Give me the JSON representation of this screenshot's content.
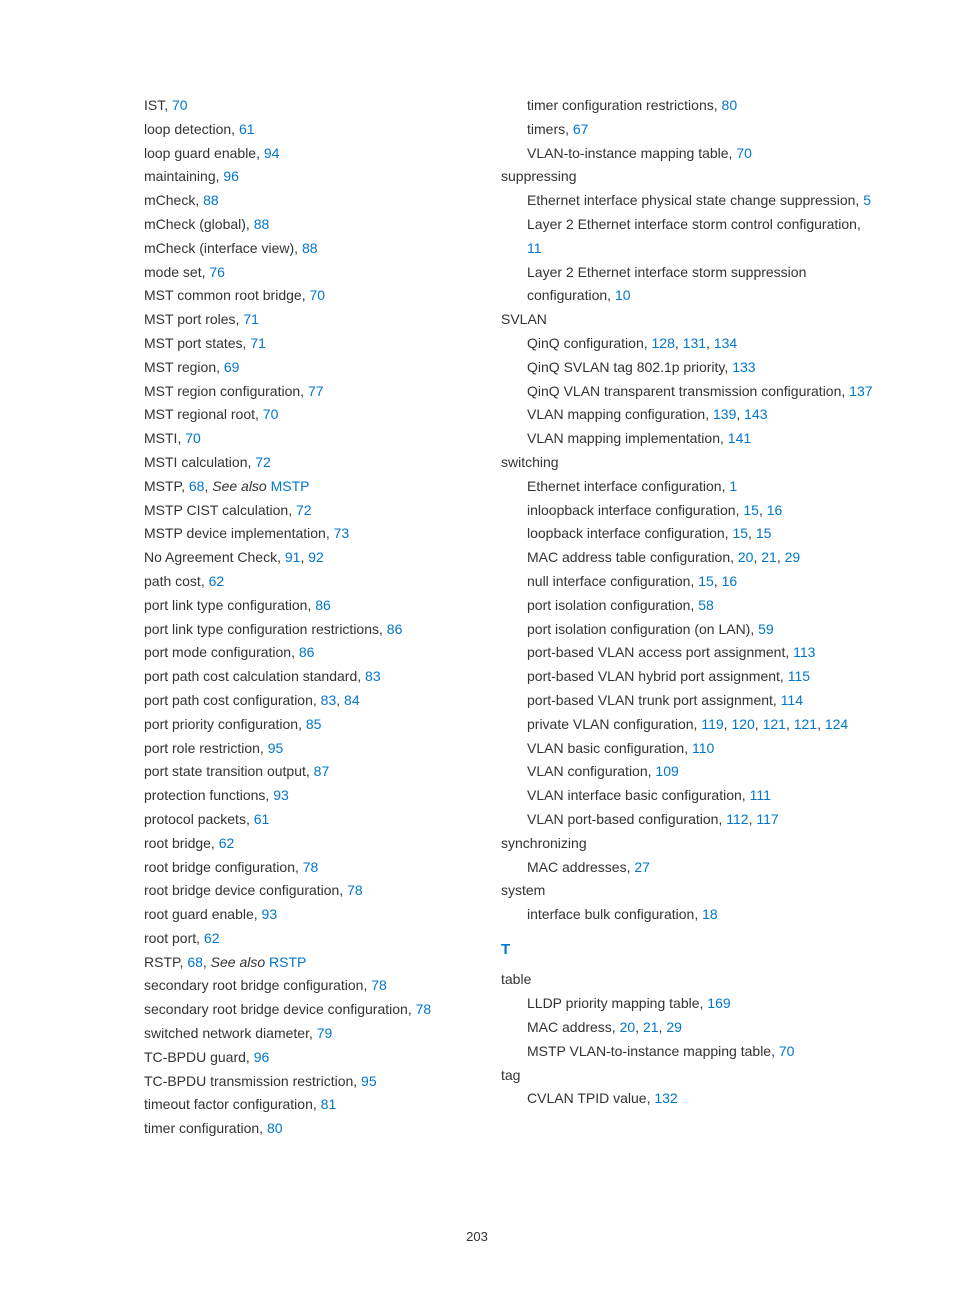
{
  "page_number": "203",
  "link_color": "#0077cc",
  "text_color": "#333333",
  "font_family": "Arial, Helvetica, sans-serif",
  "font_size_pt": 10,
  "left_column": [
    {
      "indent": 1,
      "parts": [
        {
          "t": "IST, "
        },
        {
          "t": "70",
          "l": true
        }
      ]
    },
    {
      "indent": 1,
      "parts": [
        {
          "t": "loop detection, "
        },
        {
          "t": "61",
          "l": true
        }
      ]
    },
    {
      "indent": 1,
      "parts": [
        {
          "t": "loop guard enable, "
        },
        {
          "t": "94",
          "l": true
        }
      ]
    },
    {
      "indent": 1,
      "parts": [
        {
          "t": "maintaining, "
        },
        {
          "t": "96",
          "l": true
        }
      ]
    },
    {
      "indent": 1,
      "parts": [
        {
          "t": "mCheck, "
        },
        {
          "t": "88",
          "l": true
        }
      ]
    },
    {
      "indent": 1,
      "parts": [
        {
          "t": "mCheck (global), "
        },
        {
          "t": "88",
          "l": true
        }
      ]
    },
    {
      "indent": 1,
      "parts": [
        {
          "t": "mCheck (interface view), "
        },
        {
          "t": "88",
          "l": true
        }
      ]
    },
    {
      "indent": 1,
      "parts": [
        {
          "t": "mode set, "
        },
        {
          "t": "76",
          "l": true
        }
      ]
    },
    {
      "indent": 1,
      "parts": [
        {
          "t": "MST common root bridge, "
        },
        {
          "t": "70",
          "l": true
        }
      ]
    },
    {
      "indent": 1,
      "parts": [
        {
          "t": "MST port roles, "
        },
        {
          "t": "71",
          "l": true
        }
      ]
    },
    {
      "indent": 1,
      "parts": [
        {
          "t": "MST port states, "
        },
        {
          "t": "71",
          "l": true
        }
      ]
    },
    {
      "indent": 1,
      "parts": [
        {
          "t": "MST region, "
        },
        {
          "t": "69",
          "l": true
        }
      ]
    },
    {
      "indent": 1,
      "parts": [
        {
          "t": "MST region configuration, "
        },
        {
          "t": "77",
          "l": true
        }
      ]
    },
    {
      "indent": 1,
      "parts": [
        {
          "t": "MST regional root, "
        },
        {
          "t": "70",
          "l": true
        }
      ]
    },
    {
      "indent": 1,
      "parts": [
        {
          "t": "MSTI, "
        },
        {
          "t": "70",
          "l": true
        }
      ]
    },
    {
      "indent": 1,
      "parts": [
        {
          "t": "MSTI calculation, "
        },
        {
          "t": "72",
          "l": true
        }
      ]
    },
    {
      "indent": 1,
      "parts": [
        {
          "t": "MSTP, "
        },
        {
          "t": "68",
          "l": true
        },
        {
          "t": ", "
        },
        {
          "t": "See also",
          "i": true
        },
        {
          "t": " "
        },
        {
          "t": "MSTP",
          "l": true
        }
      ]
    },
    {
      "indent": 1,
      "parts": [
        {
          "t": "MSTP CIST calculation, "
        },
        {
          "t": "72",
          "l": true
        }
      ]
    },
    {
      "indent": 1,
      "parts": [
        {
          "t": "MSTP device implementation, "
        },
        {
          "t": "73",
          "l": true
        }
      ]
    },
    {
      "indent": 1,
      "parts": [
        {
          "t": "No Agreement Check, "
        },
        {
          "t": "91",
          "l": true
        },
        {
          "t": ", "
        },
        {
          "t": "92",
          "l": true
        }
      ]
    },
    {
      "indent": 1,
      "parts": [
        {
          "t": "path cost, "
        },
        {
          "t": "62",
          "l": true
        }
      ]
    },
    {
      "indent": 1,
      "parts": [
        {
          "t": "port link type configuration, "
        },
        {
          "t": "86",
          "l": true
        }
      ]
    },
    {
      "indent": 1,
      "parts": [
        {
          "t": "port link type configuration restrictions, "
        },
        {
          "t": "86",
          "l": true
        }
      ]
    },
    {
      "indent": 1,
      "parts": [
        {
          "t": "port mode configuration, "
        },
        {
          "t": "86",
          "l": true
        }
      ]
    },
    {
      "indent": 1,
      "parts": [
        {
          "t": "port path cost calculation standard, "
        },
        {
          "t": "83",
          "l": true
        }
      ]
    },
    {
      "indent": 1,
      "parts": [
        {
          "t": "port path cost configuration, "
        },
        {
          "t": "83",
          "l": true
        },
        {
          "t": ", "
        },
        {
          "t": "84",
          "l": true
        }
      ]
    },
    {
      "indent": 1,
      "parts": [
        {
          "t": "port priority configuration, "
        },
        {
          "t": "85",
          "l": true
        }
      ]
    },
    {
      "indent": 1,
      "parts": [
        {
          "t": "port role restriction, "
        },
        {
          "t": "95",
          "l": true
        }
      ]
    },
    {
      "indent": 1,
      "parts": [
        {
          "t": "port state transition output, "
        },
        {
          "t": "87",
          "l": true
        }
      ]
    },
    {
      "indent": 1,
      "parts": [
        {
          "t": "protection functions, "
        },
        {
          "t": "93",
          "l": true
        }
      ]
    },
    {
      "indent": 1,
      "parts": [
        {
          "t": "protocol packets, "
        },
        {
          "t": "61",
          "l": true
        }
      ]
    },
    {
      "indent": 1,
      "parts": [
        {
          "t": "root bridge, "
        },
        {
          "t": "62",
          "l": true
        }
      ]
    },
    {
      "indent": 1,
      "parts": [
        {
          "t": "root bridge configuration, "
        },
        {
          "t": "78",
          "l": true
        }
      ]
    },
    {
      "indent": 1,
      "parts": [
        {
          "t": "root bridge device configuration, "
        },
        {
          "t": "78",
          "l": true
        }
      ]
    },
    {
      "indent": 1,
      "parts": [
        {
          "t": "root guard enable, "
        },
        {
          "t": "93",
          "l": true
        }
      ]
    },
    {
      "indent": 1,
      "parts": [
        {
          "t": "root port, "
        },
        {
          "t": "62",
          "l": true
        }
      ]
    },
    {
      "indent": 1,
      "parts": [
        {
          "t": "RSTP, "
        },
        {
          "t": "68",
          "l": true
        },
        {
          "t": ", "
        },
        {
          "t": "See also",
          "i": true
        },
        {
          "t": " "
        },
        {
          "t": "RSTP",
          "l": true
        }
      ]
    },
    {
      "indent": 1,
      "parts": [
        {
          "t": "secondary root bridge configuration, "
        },
        {
          "t": "78",
          "l": true
        }
      ]
    },
    {
      "indent": 1,
      "parts": [
        {
          "t": "secondary root bridge device configuration, "
        },
        {
          "t": "78",
          "l": true
        }
      ]
    },
    {
      "indent": 1,
      "parts": [
        {
          "t": "switched network diameter, "
        },
        {
          "t": "79",
          "l": true
        }
      ]
    },
    {
      "indent": 1,
      "parts": [
        {
          "t": "TC-BPDU guard, "
        },
        {
          "t": "96",
          "l": true
        }
      ]
    },
    {
      "indent": 1,
      "parts": [
        {
          "t": "TC-BPDU transmission restriction, "
        },
        {
          "t": "95",
          "l": true
        }
      ]
    },
    {
      "indent": 1,
      "parts": [
        {
          "t": "timeout factor configuration, "
        },
        {
          "t": "81",
          "l": true
        }
      ]
    },
    {
      "indent": 1,
      "parts": [
        {
          "t": "timer configuration, "
        },
        {
          "t": "80",
          "l": true
        }
      ]
    }
  ],
  "right_column": [
    {
      "indent": 1,
      "parts": [
        {
          "t": "timer configuration restrictions, "
        },
        {
          "t": "80",
          "l": true
        }
      ]
    },
    {
      "indent": 1,
      "parts": [
        {
          "t": "timers, "
        },
        {
          "t": "67",
          "l": true
        }
      ]
    },
    {
      "indent": 1,
      "parts": [
        {
          "t": "VLAN-to-instance mapping table, "
        },
        {
          "t": "70",
          "l": true
        }
      ]
    },
    {
      "indent": 0,
      "parts": [
        {
          "t": "suppressing"
        }
      ]
    },
    {
      "indent": 1,
      "parts": [
        {
          "t": "Ethernet interface physical state change suppression, "
        },
        {
          "t": "5",
          "l": true
        }
      ]
    },
    {
      "indent": 1,
      "parts": [
        {
          "t": "Layer 2 Ethernet interface storm control configuration, "
        },
        {
          "t": "11",
          "l": true
        }
      ]
    },
    {
      "indent": 1,
      "parts": [
        {
          "t": "Layer 2 Ethernet interface storm suppression configuration, "
        },
        {
          "t": "10",
          "l": true
        }
      ]
    },
    {
      "indent": 0,
      "parts": [
        {
          "t": "SVLAN"
        }
      ]
    },
    {
      "indent": 1,
      "parts": [
        {
          "t": "QinQ configuration, "
        },
        {
          "t": "128",
          "l": true
        },
        {
          "t": ", "
        },
        {
          "t": "131",
          "l": true
        },
        {
          "t": ", "
        },
        {
          "t": "134",
          "l": true
        }
      ]
    },
    {
      "indent": 1,
      "parts": [
        {
          "t": "QinQ SVLAN tag 802.1p priority, "
        },
        {
          "t": "133",
          "l": true
        }
      ]
    },
    {
      "indent": 1,
      "parts": [
        {
          "t": "QinQ VLAN transparent transmission configuration, "
        },
        {
          "t": "137",
          "l": true
        }
      ]
    },
    {
      "indent": 1,
      "parts": [
        {
          "t": "VLAN mapping configuration, "
        },
        {
          "t": "139",
          "l": true
        },
        {
          "t": ", "
        },
        {
          "t": "143",
          "l": true
        }
      ]
    },
    {
      "indent": 1,
      "parts": [
        {
          "t": "VLAN mapping implementation, "
        },
        {
          "t": "141",
          "l": true
        }
      ]
    },
    {
      "indent": 0,
      "parts": [
        {
          "t": "switching"
        }
      ]
    },
    {
      "indent": 1,
      "parts": [
        {
          "t": "Ethernet interface configuration, "
        },
        {
          "t": "1",
          "l": true
        }
      ]
    },
    {
      "indent": 1,
      "parts": [
        {
          "t": "inloopback interface configuration, "
        },
        {
          "t": "15",
          "l": true
        },
        {
          "t": ", "
        },
        {
          "t": "16",
          "l": true
        }
      ]
    },
    {
      "indent": 1,
      "parts": [
        {
          "t": "loopback interface configuration, "
        },
        {
          "t": "15",
          "l": true
        },
        {
          "t": ", "
        },
        {
          "t": "15",
          "l": true
        }
      ]
    },
    {
      "indent": 1,
      "parts": [
        {
          "t": "MAC address table configuration, "
        },
        {
          "t": "20",
          "l": true
        },
        {
          "t": ", "
        },
        {
          "t": "21",
          "l": true
        },
        {
          "t": ", "
        },
        {
          "t": "29",
          "l": true
        }
      ]
    },
    {
      "indent": 1,
      "parts": [
        {
          "t": "null interface configuration, "
        },
        {
          "t": "15",
          "l": true
        },
        {
          "t": ", "
        },
        {
          "t": "16",
          "l": true
        }
      ]
    },
    {
      "indent": 1,
      "parts": [
        {
          "t": "port isolation configuration, "
        },
        {
          "t": "58",
          "l": true
        }
      ]
    },
    {
      "indent": 1,
      "parts": [
        {
          "t": "port isolation configuration (on LAN), "
        },
        {
          "t": "59",
          "l": true
        }
      ]
    },
    {
      "indent": 1,
      "parts": [
        {
          "t": "port-based VLAN access port assignment, "
        },
        {
          "t": "113",
          "l": true
        }
      ]
    },
    {
      "indent": 1,
      "parts": [
        {
          "t": "port-based VLAN hybrid port assignment, "
        },
        {
          "t": "115",
          "l": true
        }
      ]
    },
    {
      "indent": 1,
      "parts": [
        {
          "t": "port-based VLAN trunk port assignment, "
        },
        {
          "t": "114",
          "l": true
        }
      ]
    },
    {
      "indent": 1,
      "parts": [
        {
          "t": "private VLAN configuration, "
        },
        {
          "t": "119",
          "l": true
        },
        {
          "t": ", "
        },
        {
          "t": "120",
          "l": true
        },
        {
          "t": ", "
        },
        {
          "t": "121",
          "l": true
        },
        {
          "t": ", "
        },
        {
          "t": "121",
          "l": true
        },
        {
          "t": ", "
        },
        {
          "t": "124",
          "l": true
        }
      ]
    },
    {
      "indent": 1,
      "parts": [
        {
          "t": "VLAN basic configuration, "
        },
        {
          "t": "110",
          "l": true
        }
      ]
    },
    {
      "indent": 1,
      "parts": [
        {
          "t": "VLAN configuration, "
        },
        {
          "t": "109",
          "l": true
        }
      ]
    },
    {
      "indent": 1,
      "parts": [
        {
          "t": "VLAN interface basic configuration, "
        },
        {
          "t": "111",
          "l": true
        }
      ]
    },
    {
      "indent": 1,
      "parts": [
        {
          "t": "VLAN port-based configuration, "
        },
        {
          "t": "112",
          "l": true
        },
        {
          "t": ", "
        },
        {
          "t": "117",
          "l": true
        }
      ]
    },
    {
      "indent": 0,
      "parts": [
        {
          "t": "synchronizing"
        }
      ]
    },
    {
      "indent": 1,
      "parts": [
        {
          "t": "MAC addresses, "
        },
        {
          "t": "27",
          "l": true
        }
      ]
    },
    {
      "indent": 0,
      "parts": [
        {
          "t": "system"
        }
      ]
    },
    {
      "indent": 1,
      "parts": [
        {
          "t": "interface bulk configuration, "
        },
        {
          "t": "18",
          "l": true
        }
      ]
    },
    {
      "section": "T"
    },
    {
      "indent": 0,
      "parts": [
        {
          "t": "table"
        }
      ]
    },
    {
      "indent": 1,
      "parts": [
        {
          "t": "LLDP priority mapping table, "
        },
        {
          "t": "169",
          "l": true
        }
      ]
    },
    {
      "indent": 1,
      "parts": [
        {
          "t": "MAC address, "
        },
        {
          "t": "20",
          "l": true
        },
        {
          "t": ", "
        },
        {
          "t": "21",
          "l": true
        },
        {
          "t": ", "
        },
        {
          "t": "29",
          "l": true
        }
      ]
    },
    {
      "indent": 1,
      "parts": [
        {
          "t": "MSTP VLAN-to-instance mapping table, "
        },
        {
          "t": "70",
          "l": true
        }
      ]
    },
    {
      "indent": 0,
      "parts": [
        {
          "t": "tag"
        }
      ]
    },
    {
      "indent": 1,
      "parts": [
        {
          "t": "CVLAN TPID value, "
        },
        {
          "t": "132",
          "l": true
        }
      ]
    }
  ]
}
